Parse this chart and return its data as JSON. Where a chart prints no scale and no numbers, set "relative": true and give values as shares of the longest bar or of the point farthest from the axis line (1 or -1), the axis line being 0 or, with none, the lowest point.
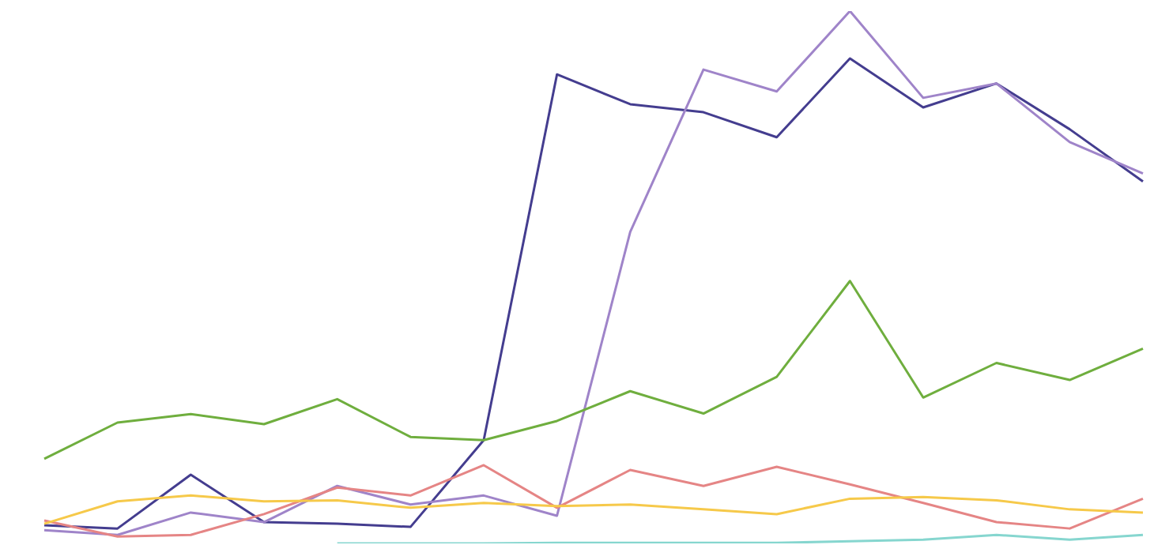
{
  "chart_data": {
    "type": "line",
    "relative": true,
    "marker": "none",
    "line_style": "solid",
    "legend": false,
    "grid": false,
    "categories": [
      null,
      null,
      null,
      null,
      null,
      null,
      null,
      null,
      null,
      null,
      null,
      null,
      null,
      null,
      null,
      null
    ],
    "series": [
      {
        "color": "#443d8f",
        "values": [
          0.034,
          0.028,
          0.129,
          0.04,
          0.037,
          0.031,
          0.194,
          0.881,
          0.825,
          0.81,
          0.763,
          0.911,
          0.819,
          0.864,
          0.778,
          0.68
        ]
      },
      {
        "color": "#9f84c9",
        "values": [
          0.025,
          0.016,
          0.058,
          0.04,
          0.108,
          0.073,
          0.09,
          0.052,
          0.585,
          0.89,
          0.849,
          1,
          0.837,
          0.864,
          0.754,
          0.695
        ]
      },
      {
        "color": "#6fae3e",
        "values": [
          0.159,
          0.227,
          0.243,
          0.224,
          0.271,
          0.2,
          0.194,
          0.23,
          0.286,
          0.244,
          0.313,
          0.493,
          0.274,
          0.339,
          0.307,
          0.366
        ]
      },
      {
        "color": "#e58585",
        "values": [
          0.043,
          0.013,
          0.016,
          0.055,
          0.105,
          0.09,
          0.147,
          0.067,
          0.138,
          0.108,
          0.144,
          0.111,
          0.076,
          0.04,
          0.028,
          0.084
        ]
      },
      {
        "color": "#f6c94a",
        "values": [
          0.037,
          0.079,
          0.09,
          0.079,
          0.081,
          0.067,
          0.076,
          0.07,
          0.073,
          0.064,
          0.055,
          0.084,
          0.087,
          0.081,
          0.064,
          0.058
        ]
      },
      {
        "color": "#86d6cf",
        "values": [
          null,
          null,
          null,
          null,
          0,
          0,
          0,
          0.001,
          0.001,
          0.001,
          0.001,
          0.004,
          0.007,
          0.016,
          0.007,
          0.016
        ]
      }
    ]
  }
}
